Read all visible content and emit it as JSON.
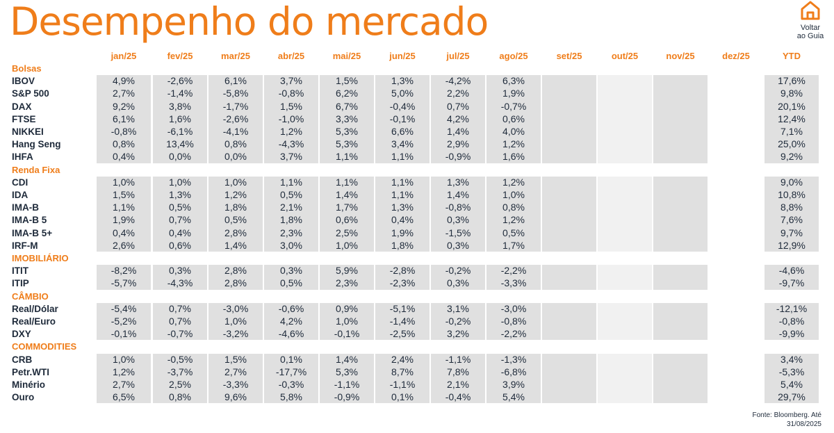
{
  "page": {
    "title": "Desempenho do mercado",
    "back_label_1": "Voltar",
    "back_label_2": "ao Guia",
    "source_1": "Fonte: Bloomberg. Até",
    "source_2": "31/08/2025",
    "colors": {
      "accent": "#ef7d1a",
      "text": "#1e2a3a",
      "band_dark": "#e0e0e0",
      "band_light": "#f1f1f1"
    }
  },
  "icons": {
    "back": "home-icon"
  },
  "table": {
    "columns": [
      "jan/25",
      "fev/25",
      "mar/25",
      "abr/25",
      "mai/25",
      "jun/25",
      "jul/25",
      "ago/25",
      "set/25",
      "out/25",
      "nov/25",
      "dez/25",
      "YTD"
    ],
    "sections": [
      {
        "name": "Bolsas",
        "rows": [
          {
            "label": "IBOV",
            "values": [
              "4,9%",
              "-2,6%",
              "6,1%",
              "3,7%",
              "1,5%",
              "1,3%",
              "-4,2%",
              "6,3%",
              "",
              "",
              "",
              "",
              "17,6%"
            ]
          },
          {
            "label": "S&P 500",
            "values": [
              "2,7%",
              "-1,4%",
              "-5,8%",
              "-0,8%",
              "6,2%",
              "5,0%",
              "2,2%",
              "1,9%",
              "",
              "",
              "",
              "",
              "9,8%"
            ]
          },
          {
            "label": "DAX",
            "values": [
              "9,2%",
              "3,8%",
              "-1,7%",
              "1,5%",
              "6,7%",
              "-0,4%",
              "0,7%",
              "-0,7%",
              "",
              "",
              "",
              "",
              "20,1%"
            ]
          },
          {
            "label": "FTSE",
            "values": [
              "6,1%",
              "1,6%",
              "-2,6%",
              "-1,0%",
              "3,3%",
              "-0,1%",
              "4,2%",
              "0,6%",
              "",
              "",
              "",
              "",
              "12,4%"
            ]
          },
          {
            "label": "NIKKEI",
            "values": [
              "-0,8%",
              "-6,1%",
              "-4,1%",
              "1,2%",
              "5,3%",
              "6,6%",
              "1,4%",
              "4,0%",
              "",
              "",
              "",
              "",
              "7,1%"
            ]
          },
          {
            "label": "Hang Seng",
            "values": [
              "0,8%",
              "13,4%",
              "0,8%",
              "-4,3%",
              "5,3%",
              "3,4%",
              "2,9%",
              "1,2%",
              "",
              "",
              "",
              "",
              "25,0%"
            ]
          },
          {
            "label": "IHFA",
            "values": [
              "0,4%",
              "0,0%",
              "0,0%",
              "3,7%",
              "1,1%",
              "1,1%",
              "-0,9%",
              "1,6%",
              "",
              "",
              "",
              "",
              "9,2%"
            ]
          }
        ]
      },
      {
        "name": "Renda Fixa",
        "rows": [
          {
            "label": "CDI",
            "values": [
              "1,0%",
              "1,0%",
              "1,0%",
              "1,1%",
              "1,1%",
              "1,1%",
              "1,3%",
              "1,2%",
              "",
              "",
              "",
              "",
              "9,0%"
            ]
          },
          {
            "label": "IDA",
            "values": [
              "1,5%",
              "1,3%",
              "1,2%",
              "0,5%",
              "1,4%",
              "1,1%",
              "1,4%",
              "1,0%",
              "",
              "",
              "",
              "",
              "10,8%"
            ]
          },
          {
            "label": "IMA-B",
            "values": [
              "1,1%",
              "0,5%",
              "1,8%",
              "2,1%",
              "1,7%",
              "1,3%",
              "-0,8%",
              "0,8%",
              "",
              "",
              "",
              "",
              "8,8%"
            ]
          },
          {
            "label": "IMA-B 5",
            "values": [
              "1,9%",
              "0,7%",
              "0,5%",
              "1,8%",
              "0,6%",
              "0,4%",
              "0,3%",
              "1,2%",
              "",
              "",
              "",
              "",
              "7,6%"
            ]
          },
          {
            "label": "IMA-B 5+",
            "values": [
              "0,4%",
              "0,4%",
              "2,8%",
              "2,3%",
              "2,5%",
              "1,9%",
              "-1,5%",
              "0,5%",
              "",
              "",
              "",
              "",
              "9,7%"
            ]
          },
          {
            "label": "IRF-M",
            "values": [
              "2,6%",
              "0,6%",
              "1,4%",
              "3,0%",
              "1,0%",
              "1,8%",
              "0,3%",
              "1,7%",
              "",
              "",
              "",
              "",
              "12,9%"
            ]
          }
        ]
      },
      {
        "name": "IMOBILIÁRIO",
        "rows": [
          {
            "label": "ITIT",
            "values": [
              "-8,2%",
              "0,3%",
              "2,8%",
              "0,3%",
              "5,9%",
              "-2,8%",
              "-0,2%",
              "-2,2%",
              "",
              "",
              "",
              "",
              "-4,6%"
            ]
          },
          {
            "label": "ITIP",
            "values": [
              "-5,7%",
              "-4,3%",
              "2,8%",
              "0,5%",
              "2,3%",
              "-2,3%",
              "0,3%",
              "-3,3%",
              "",
              "",
              "",
              "",
              "-9,7%"
            ]
          }
        ]
      },
      {
        "name": "CÂMBIO",
        "rows": [
          {
            "label": "Real/Dólar",
            "values": [
              "-5,4%",
              "0,7%",
              "-3,0%",
              "-0,6%",
              "0,9%",
              "-5,1%",
              "3,1%",
              "-3,0%",
              "",
              "",
              "",
              "",
              "-12,1%"
            ]
          },
          {
            "label": "Real/Euro",
            "values": [
              "-5,2%",
              "0,7%",
              "1,0%",
              "4,2%",
              "1,0%",
              "-1,4%",
              "-0,2%",
              "-0,8%",
              "",
              "",
              "",
              "",
              "-0,8%"
            ]
          },
          {
            "label": "DXY",
            "values": [
              "-0,1%",
              "-0,7%",
              "-3,2%",
              "-4,6%",
              "-0,1%",
              "-2,5%",
              "3,2%",
              "-2,2%",
              "",
              "",
              "",
              "",
              "-9,9%"
            ]
          }
        ]
      },
      {
        "name": "COMMODITIES",
        "rows": [
          {
            "label": "CRB",
            "values": [
              "1,0%",
              "-0,5%",
              "1,5%",
              "0,1%",
              "1,4%",
              "2,4%",
              "-1,1%",
              "-1,3%",
              "",
              "",
              "",
              "",
              "3,4%"
            ]
          },
          {
            "label": "Petr.WTI",
            "values": [
              "1,2%",
              "-3,7%",
              "2,7%",
              "-17,7%",
              "5,3%",
              "8,7%",
              "7,8%",
              "-6,8%",
              "",
              "",
              "",
              "",
              "-5,3%"
            ]
          },
          {
            "label": "Minério",
            "values": [
              "2,7%",
              "2,5%",
              "-3,3%",
              "-0,3%",
              "-1,1%",
              "-1,1%",
              "2,1%",
              "3,9%",
              "",
              "",
              "",
              "",
              "5,4%"
            ]
          },
          {
            "label": "Ouro",
            "values": [
              "6,5%",
              "0,8%",
              "9,6%",
              "5,8%",
              "-0,9%",
              "0,1%",
              "-0,4%",
              "5,4%",
              "",
              "",
              "",
              "",
              "29,7%"
            ]
          }
        ]
      }
    ]
  }
}
